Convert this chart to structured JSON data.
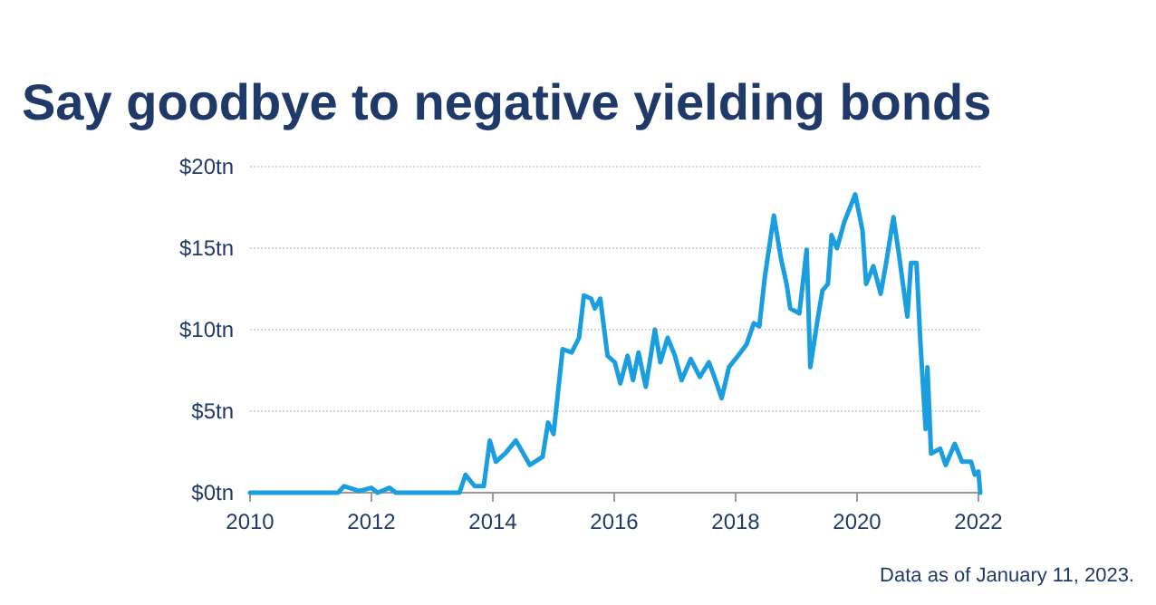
{
  "chart_data": {
    "type": "line",
    "title": "Say goodbye to negative yielding bonds",
    "annotations": [
      "Data as of January 11, 2023."
    ],
    "x": [
      2010,
      2011.45,
      2011.55,
      2011.8,
      2012.0,
      2012.1,
      2012.3,
      2012.4,
      2013.45,
      2013.55,
      2013.7,
      2013.85,
      2013.95,
      2014.05,
      2014.2,
      2014.38,
      2014.61,
      2014.82,
      2014.91,
      2015.0,
      2015.15,
      2015.3,
      2015.42,
      2015.5,
      2015.62,
      2015.68,
      2015.77,
      2015.89,
      2016.01,
      2016.1,
      2016.22,
      2016.31,
      2016.4,
      2016.52,
      2016.67,
      2016.76,
      2016.88,
      2017.0,
      2017.11,
      2017.26,
      2017.41,
      2017.56,
      2017.65,
      2017.77,
      2017.89,
      2018.04,
      2018.18,
      2018.3,
      2018.39,
      2018.48,
      2018.63,
      2018.75,
      2018.84,
      2018.9,
      2019.05,
      2019.17,
      2019.23,
      2019.35,
      2019.43,
      2019.52,
      2019.58,
      2019.67,
      2019.79,
      2019.97,
      2020.09,
      2020.15,
      2020.27,
      2020.39,
      2020.48,
      2020.6,
      2020.68,
      2020.83,
      2020.89,
      2020.98,
      2021.04,
      2021.13,
      2021.16,
      2021.22,
      2021.37,
      2021.46,
      2021.61,
      2021.73,
      2021.88,
      2021.94,
      2022.0,
      2022.03
    ],
    "series": [
      {
        "color": "#1a9ee0",
        "values": [
          0,
          0,
          0.4,
          0.1,
          0.3,
          0,
          0.3,
          0,
          0,
          1.1,
          0.4,
          0.4,
          3.2,
          1.9,
          2.4,
          3.2,
          1.7,
          2.2,
          4.3,
          3.6,
          8.8,
          8.6,
          9.5,
          12.1,
          11.9,
          11.3,
          11.9,
          8.4,
          8.0,
          6.7,
          8.4,
          6.9,
          8.6,
          6.5,
          10.0,
          8.0,
          9.5,
          8.4,
          6.9,
          8.2,
          7.1,
          8.0,
          7.1,
          5.8,
          7.7,
          8.4,
          9.1,
          10.4,
          10.2,
          13.2,
          17.0,
          14.3,
          12.8,
          11.3,
          11.0,
          14.9,
          7.7,
          10.6,
          12.4,
          12.8,
          15.8,
          15.0,
          16.6,
          18.3,
          16.1,
          12.8,
          13.9,
          12.2,
          14.1,
          16.9,
          14.9,
          10.8,
          14.1,
          14.1,
          9.5,
          3.9,
          7.7,
          2.4,
          2.7,
          1.7,
          3.0,
          1.9,
          1.9,
          1.1,
          1.3,
          0
        ]
      }
    ],
    "xlim": [
      2010,
      2022.03
    ],
    "xticks": [
      2010,
      2012,
      2014,
      2016,
      2018,
      2020,
      2022
    ],
    "ylim": [
      0,
      20
    ],
    "yticks": [
      {
        "value": 0,
        "label": "$0tn"
      },
      {
        "value": 5,
        "label": "$5tn"
      },
      {
        "value": 10,
        "label": "$10tn"
      },
      {
        "value": 15,
        "label": "$15tn"
      },
      {
        "value": 20,
        "label": "$20tn"
      }
    ],
    "grid": "y",
    "marker": "none",
    "line_style": "solid"
  }
}
